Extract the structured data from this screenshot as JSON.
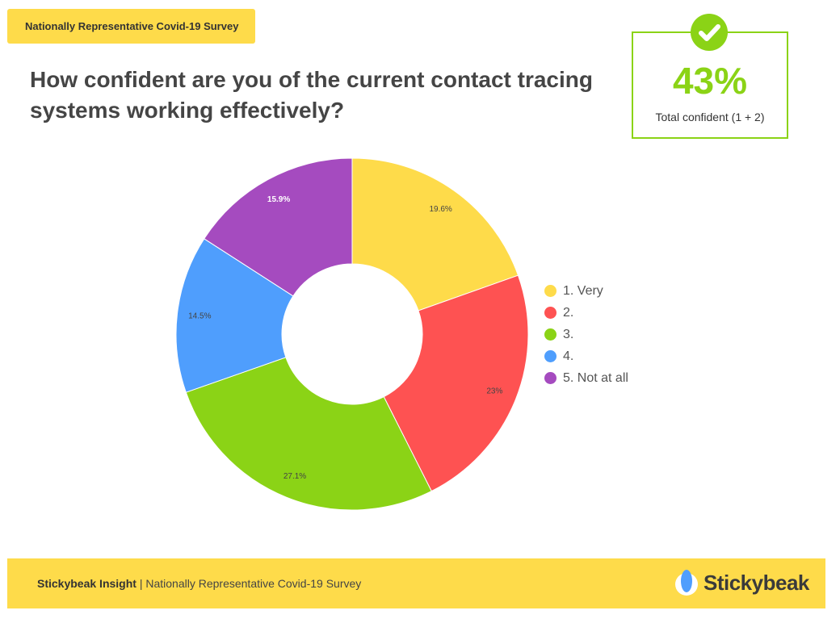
{
  "header": {
    "tag": "Nationally Representative Covid-19 Survey",
    "title": "How confident are you of the current contact tracing systems working effectively?"
  },
  "kpi": {
    "value": "43%",
    "label": "Total confident (1 + 2)",
    "icon": "check-icon",
    "color": "#8bd316"
  },
  "chart_data": {
    "type": "pie",
    "donut": true,
    "categories": [
      "1. Very",
      "2.",
      "3.",
      "4.",
      "5. Not at all"
    ],
    "values": [
      19.6,
      23,
      27.1,
      14.5,
      15.9
    ],
    "data_labels": [
      "19.6%",
      "23%",
      "27.1%",
      "14.5%",
      "15.9%"
    ],
    "colors": [
      "#fedb4a",
      "#fe5252",
      "#8bd316",
      "#4f9efd",
      "#a54bbf"
    ],
    "legend_position": "right"
  },
  "footer": {
    "brand_bold": "Stickybeak Insight",
    "separator": " | ",
    "text": "Nationally Representative Covid-19 Survey",
    "logo": "Stickybeak"
  }
}
